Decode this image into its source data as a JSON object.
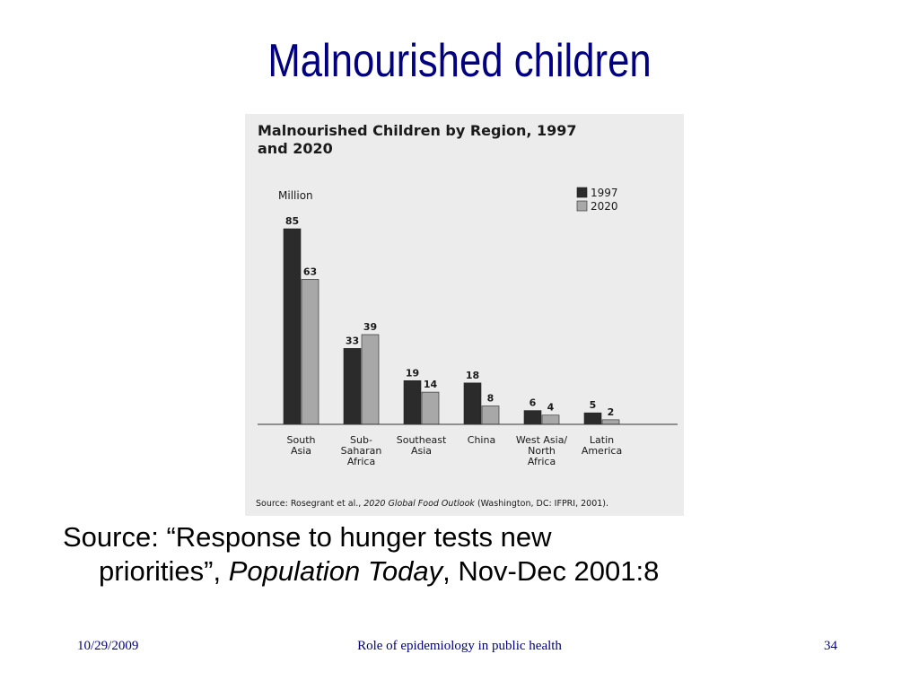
{
  "slide": {
    "title": "Malnourished children",
    "source_prefix": "Source:  “Response to hunger tests new",
    "source_cont": "priorities”, ",
    "source_journal": "Population Today",
    "source_suffix": ", Nov-Dec 2001:8"
  },
  "footer": {
    "date": "10/29/2009",
    "center": "Role of epidemiology in public health",
    "page": "34"
  },
  "chart_data": {
    "type": "bar",
    "title_line1": "Malnourished Children by Region, 1997",
    "title_line2": "and 2020",
    "ylabel": "Million",
    "categories": [
      [
        "South",
        "Asia"
      ],
      [
        "Sub-",
        "Saharan",
        "Africa"
      ],
      [
        "Southeast",
        "Asia"
      ],
      [
        "China"
      ],
      [
        "West Asia/",
        "North",
        "Africa"
      ],
      [
        "Latin",
        "America"
      ]
    ],
    "series": [
      {
        "name": "1997",
        "values": [
          85,
          33,
          19,
          18,
          6,
          5
        ],
        "color": "#2b2b2b"
      },
      {
        "name": "2020",
        "values": [
          63,
          39,
          14,
          8,
          4,
          2
        ],
        "color": "#a8a8a8"
      }
    ],
    "ylim": [
      0,
      85
    ],
    "grid": false,
    "legend": "top-right",
    "source_prefix": "Source: Rosegrant et al., ",
    "source_italic": "2020 Global Food Outlook",
    "source_suffix": " (Washington, DC: IFPRI, 2001)."
  }
}
